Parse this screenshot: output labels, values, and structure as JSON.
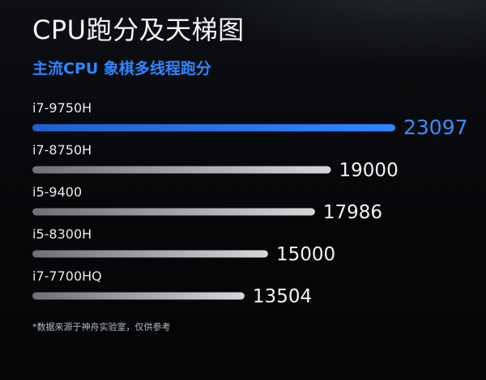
{
  "header": {
    "title": "CPU跑分及天梯图",
    "subtitle": "主流CPU 象棋多线程跑分"
  },
  "footnote": "*数据来源于神舟实验室，仅供参考",
  "colors": {
    "highlight": "#2f86ff",
    "highlight_value": "#3a8dff",
    "bar_gray_start": "#6e7075",
    "bar_gray_end": "#d6d7d9",
    "label": "#e9eaec"
  },
  "chart_data": {
    "type": "bar",
    "orientation": "horizontal",
    "title": "CPU跑分及天梯图",
    "subtitle": "主流CPU 象棋多线程跑分",
    "categories": [
      "i7-9750H",
      "i7-8750H",
      "i5-9400",
      "i5-8300H",
      "i7-7700HQ"
    ],
    "values": [
      23097,
      19000,
      17986,
      15000,
      13504
    ],
    "highlighted": "i7-9750H",
    "xlim": [
      0,
      23097
    ],
    "grid": false,
    "legend": "none"
  }
}
